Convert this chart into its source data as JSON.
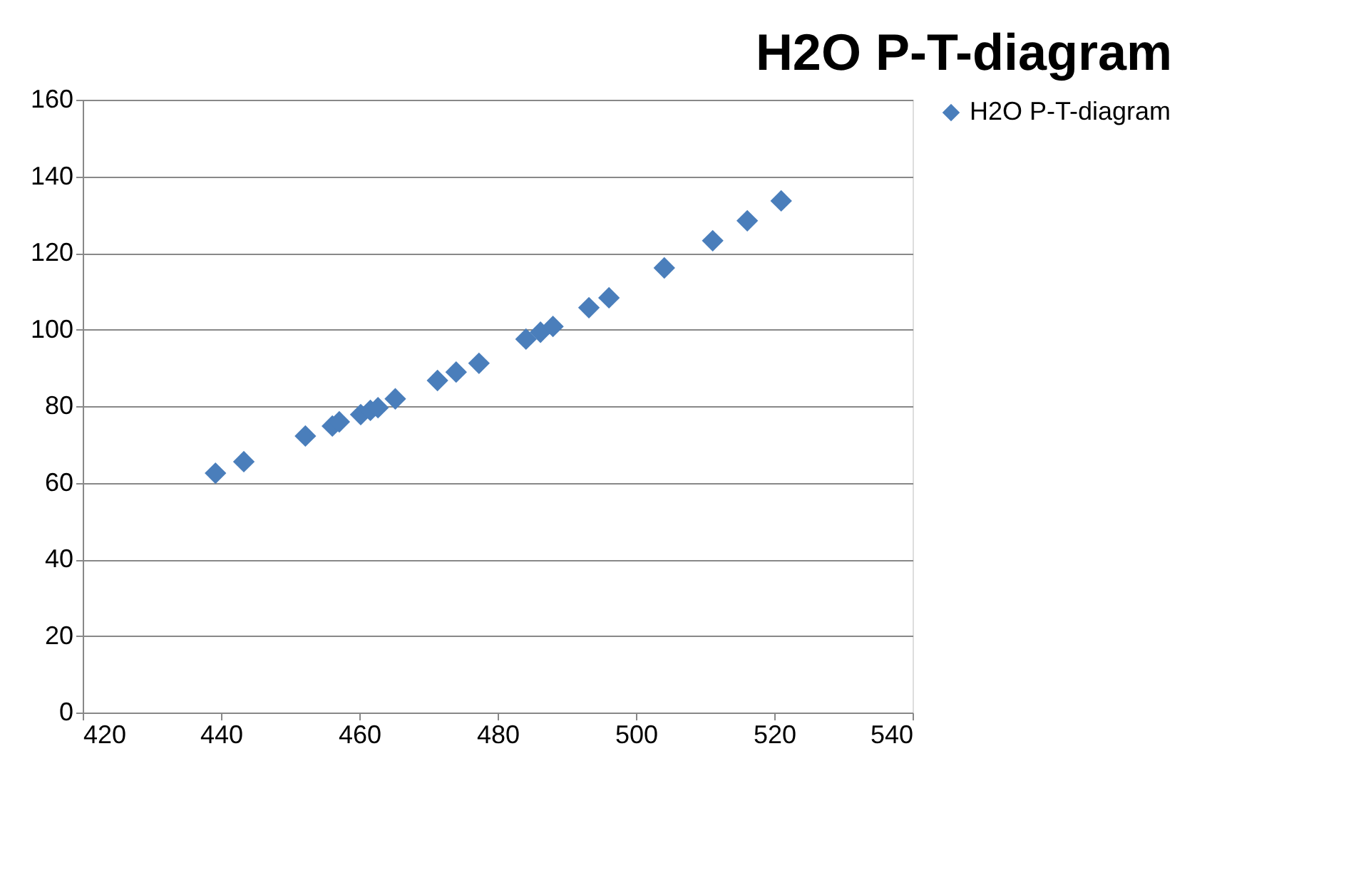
{
  "chart_data": {
    "type": "scatter",
    "title": "H2O P-T-diagram",
    "x": [
      439.2,
      443.3,
      452.2,
      456.1,
      457.1,
      460.2,
      461.6,
      462.7,
      465.2,
      471.3,
      474.0,
      477.3,
      484.1,
      486.2,
      488.0,
      493.2,
      496.1,
      504.1,
      511.1,
      516.1,
      521.0
    ],
    "series": [
      {
        "name": "H2O P-T-diagram",
        "color": "#4a7ebb",
        "values": [
          62.5,
          65.5,
          72.2,
          74.8,
          75.9,
          77.8,
          78.9,
          79.6,
          81.9,
          86.7,
          88.9,
          91.2,
          97.5,
          99.3,
          100.8,
          105.7,
          108.3,
          116.1,
          123.2,
          128.4,
          133.6
        ]
      }
    ],
    "xlim": [
      420,
      540
    ],
    "xticks": [
      420,
      440,
      460,
      480,
      500,
      520,
      540
    ],
    "ylim": [
      0,
      160
    ],
    "yticks": [
      0,
      20,
      40,
      60,
      80,
      100,
      120,
      140,
      160
    ],
    "grid": "y",
    "legend": "right",
    "marker": "diamond"
  }
}
